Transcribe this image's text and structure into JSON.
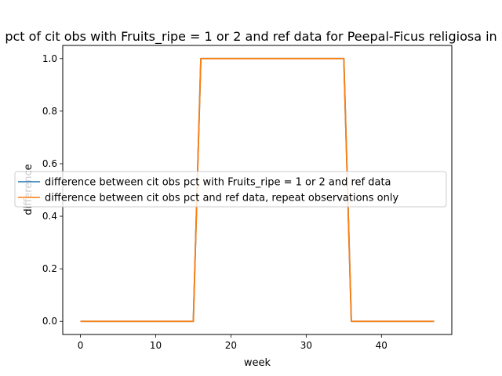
{
  "chart_data": {
    "type": "line",
    "title": "pct of cit obs with Fruits_ripe = 1 or 2 and ref data for Peepal-Ficus religiosa in",
    "xlabel": "week",
    "ylabel": "difference",
    "xlim": [
      -2.35,
      49.35
    ],
    "ylim": [
      -0.05,
      1.05
    ],
    "xticks": [
      0,
      10,
      20,
      30,
      40
    ],
    "yticks": [
      0.0,
      0.2,
      0.4,
      0.6,
      0.8,
      1.0
    ],
    "ytick_labels": [
      "0.0",
      "0.2",
      "0.4",
      "0.6",
      "0.8",
      "1.0"
    ],
    "x": [
      0,
      1,
      2,
      3,
      4,
      5,
      6,
      7,
      8,
      9,
      10,
      11,
      12,
      13,
      14,
      15,
      16,
      17,
      18,
      19,
      20,
      21,
      22,
      23,
      24,
      25,
      26,
      27,
      28,
      29,
      30,
      31,
      32,
      33,
      34,
      35,
      36,
      37,
      38,
      39,
      40,
      41,
      42,
      43,
      44,
      45,
      46,
      47
    ],
    "grid": false,
    "legend_position": "center",
    "series": [
      {
        "name": "difference between cit obs pct with Fruits_ripe = 1 or 2 and ref data",
        "color": "#1f77b4",
        "values": [
          0,
          0,
          0,
          0,
          0,
          0,
          0,
          0,
          0,
          0,
          0,
          0,
          0,
          0,
          0,
          0,
          1,
          1,
          1,
          1,
          1,
          1,
          1,
          1,
          1,
          1,
          1,
          1,
          1,
          1,
          1,
          1,
          1,
          1,
          1,
          1,
          0,
          0,
          0,
          0,
          0,
          0,
          0,
          0,
          0,
          0,
          0,
          0
        ]
      },
      {
        "name": "difference between cit obs pct and ref data, repeat observations only",
        "color": "#ff7f0e",
        "values": [
          0,
          0,
          0,
          0,
          0,
          0,
          0,
          0,
          0,
          0,
          0,
          0,
          0,
          0,
          0,
          0,
          1,
          1,
          1,
          1,
          1,
          1,
          1,
          1,
          1,
          1,
          1,
          1,
          1,
          1,
          1,
          1,
          1,
          1,
          1,
          1,
          0,
          0,
          0,
          0,
          0,
          0,
          0,
          0,
          0,
          0,
          0,
          0
        ]
      }
    ]
  }
}
